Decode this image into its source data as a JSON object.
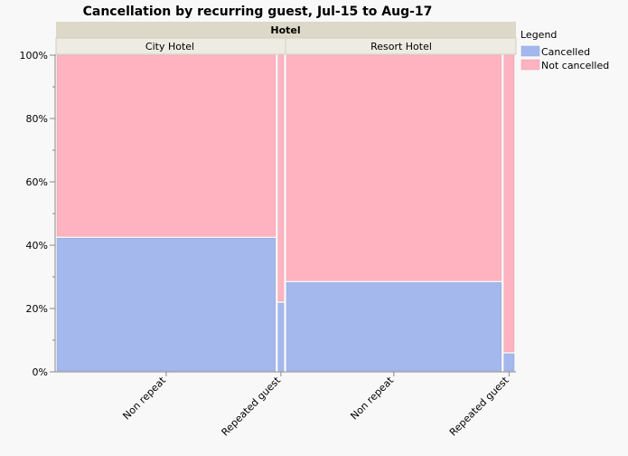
{
  "chart_data": {
    "type": "mosaic",
    "title": "Cancellation by recurring guest, Jul-15 to Aug-17",
    "group_header": "Hotel",
    "groups": [
      {
        "name": "City Hotel",
        "categories": [
          {
            "name": "Non repeat",
            "width_share": 0.975,
            "cancelled": 42.5,
            "not_cancelled": 57.5
          },
          {
            "name": "Repeated guest",
            "width_share": 0.025,
            "cancelled": 22.0,
            "not_cancelled": 78.0
          }
        ]
      },
      {
        "name": "Resort Hotel",
        "categories": [
          {
            "name": "Non repeat",
            "width_share": 0.955,
            "cancelled": 28.5,
            "not_cancelled": 71.5
          },
          {
            "name": "Repeated guest",
            "width_share": 0.045,
            "cancelled": 6.0,
            "not_cancelled": 94.0
          }
        ]
      }
    ],
    "y_ticks": [
      "0%",
      "20%",
      "40%",
      "60%",
      "80%",
      "100%"
    ],
    "ylim": [
      0,
      100
    ],
    "legend": {
      "title": "Legend",
      "placement": "top-right",
      "items": [
        {
          "label": "Cancelled",
          "color": "#a4b8ed"
        },
        {
          "label": "Not cancelled",
          "color": "#ffb3c1"
        }
      ]
    }
  }
}
